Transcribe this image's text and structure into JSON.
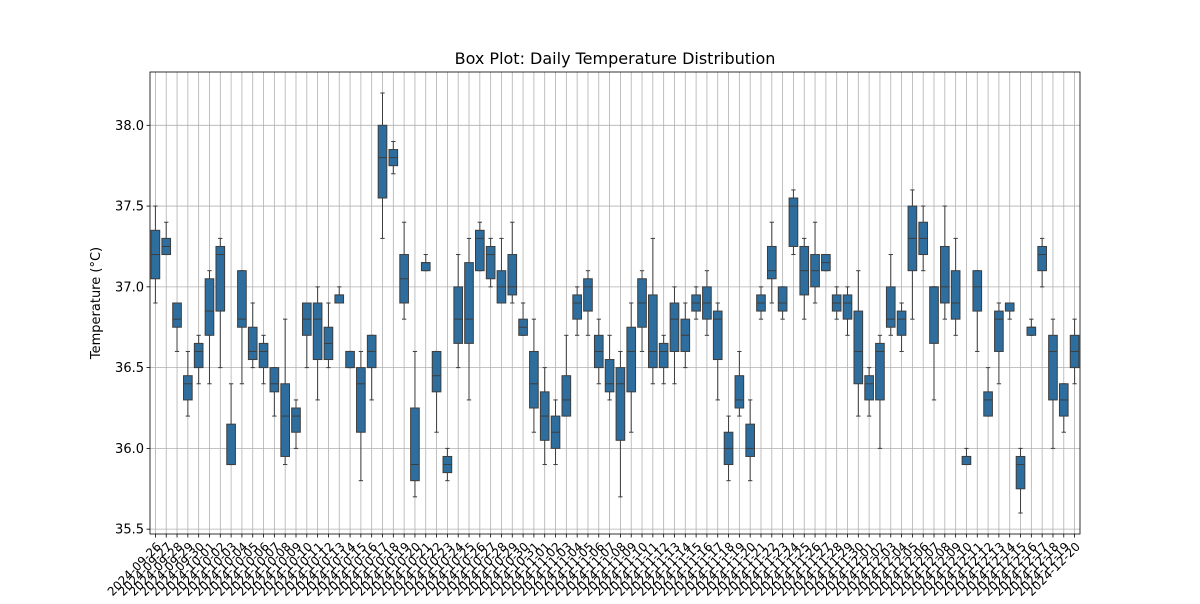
{
  "chart_data": {
    "type": "box",
    "title": "Box Plot: Daily Temperature Distribution",
    "xlabel": "",
    "ylabel": "Temperature (°C)",
    "ylim": [
      35.47,
      38.33
    ],
    "yticks": [
      35.5,
      36.0,
      36.5,
      37.0,
      37.5,
      38.0
    ],
    "ytick_labels": [
      "35.5",
      "36.0",
      "36.5",
      "37.0",
      "37.5",
      "38.0"
    ],
    "grid": true,
    "box_color": "#2e6e9e",
    "tick_label_rotation": 45,
    "categories": [
      "2024-09-26",
      "2024-09-27",
      "2024-09-28",
      "2024-09-29",
      "2024-09-30",
      "2024-10-01",
      "2024-10-02",
      "2024-10-03",
      "2024-10-04",
      "2024-10-05",
      "2024-10-06",
      "2024-10-07",
      "2024-10-08",
      "2024-10-09",
      "2024-10-10",
      "2024-10-11",
      "2024-10-12",
      "2024-10-13",
      "2024-10-14",
      "2024-10-15",
      "2024-10-16",
      "2024-10-17",
      "2024-10-18",
      "2024-10-19",
      "2024-10-20",
      "2024-10-21",
      "2024-10-22",
      "2024-10-23",
      "2024-10-24",
      "2024-10-25",
      "2024-10-26",
      "2024-10-27",
      "2024-10-28",
      "2024-10-29",
      "2024-10-30",
      "2024-10-31",
      "2024-11-01",
      "2024-11-02",
      "2024-11-03",
      "2024-11-04",
      "2024-11-05",
      "2024-11-06",
      "2024-11-07",
      "2024-11-08",
      "2024-11-09",
      "2024-11-10",
      "2024-11-11",
      "2024-11-12",
      "2024-11-13",
      "2024-11-14",
      "2024-11-15",
      "2024-11-16",
      "2024-11-17",
      "2024-11-18",
      "2024-11-19",
      "2024-11-20",
      "2024-11-21",
      "2024-11-22",
      "2024-11-23",
      "2024-11-24",
      "2024-11-25",
      "2024-11-26",
      "2024-11-27",
      "2024-11-28",
      "2024-11-29",
      "2024-11-30",
      "2024-12-01",
      "2024-12-02",
      "2024-12-03",
      "2024-12-04",
      "2024-12-05",
      "2024-12-06",
      "2024-12-07",
      "2024-12-08",
      "2024-12-09",
      "2024-12-10",
      "2024-12-11",
      "2024-12-12",
      "2024-12-13",
      "2024-12-14",
      "2024-12-15",
      "2024-12-16",
      "2024-12-17",
      "2024-12-18",
      "2024-12-19",
      "2024-12-20"
    ],
    "boxes": [
      {
        "whislo": 36.9,
        "q1": 37.05,
        "med": 37.2,
        "q3": 37.35,
        "whishi": 37.5
      },
      {
        "whislo": 37.2,
        "q1": 37.2,
        "med": 37.25,
        "q3": 37.3,
        "whishi": 37.4
      },
      {
        "whislo": 36.6,
        "q1": 36.75,
        "med": 36.8,
        "q3": 36.9,
        "whishi": 36.9
      },
      {
        "whislo": 36.2,
        "q1": 36.3,
        "med": 36.4,
        "q3": 36.45,
        "whishi": 36.6
      },
      {
        "whislo": 36.4,
        "q1": 36.5,
        "med": 36.6,
        "q3": 36.65,
        "whishi": 36.7
      },
      {
        "whislo": 36.4,
        "q1": 36.7,
        "med": 36.85,
        "q3": 37.05,
        "whishi": 37.1
      },
      {
        "whislo": 36.5,
        "q1": 36.85,
        "med": 37.2,
        "q3": 37.25,
        "whishi": 37.3
      },
      {
        "whislo": 35.9,
        "q1": 35.9,
        "med": 35.9,
        "q3": 36.15,
        "whishi": 36.4
      },
      {
        "whislo": 36.4,
        "q1": 36.75,
        "med": 36.8,
        "q3": 37.1,
        "whishi": 37.1
      },
      {
        "whislo": 36.5,
        "q1": 36.55,
        "med": 36.6,
        "q3": 36.75,
        "whishi": 36.9
      },
      {
        "whislo": 36.4,
        "q1": 36.5,
        "med": 36.6,
        "q3": 36.65,
        "whishi": 36.7
      },
      {
        "whislo": 36.2,
        "q1": 36.35,
        "med": 36.4,
        "q3": 36.5,
        "whishi": 36.5
      },
      {
        "whislo": 35.9,
        "q1": 35.95,
        "med": 36.2,
        "q3": 36.4,
        "whishi": 36.8
      },
      {
        "whislo": 36.0,
        "q1": 36.1,
        "med": 36.2,
        "q3": 36.25,
        "whishi": 36.3
      },
      {
        "whislo": 36.5,
        "q1": 36.7,
        "med": 36.8,
        "q3": 36.9,
        "whishi": 36.9
      },
      {
        "whislo": 36.3,
        "q1": 36.55,
        "med": 36.8,
        "q3": 36.9,
        "whishi": 37.0
      },
      {
        "whislo": 36.5,
        "q1": 36.55,
        "med": 36.65,
        "q3": 36.75,
        "whishi": 36.9
      },
      {
        "whislo": 36.9,
        "q1": 36.9,
        "med": 36.95,
        "q3": 36.95,
        "whishi": 37.0
      },
      {
        "whislo": 36.5,
        "q1": 36.5,
        "med": 36.6,
        "q3": 36.6,
        "whishi": 36.6
      },
      {
        "whislo": 35.8,
        "q1": 36.1,
        "med": 36.4,
        "q3": 36.5,
        "whishi": 36.6
      },
      {
        "whislo": 36.3,
        "q1": 36.5,
        "med": 36.6,
        "q3": 36.7,
        "whishi": 36.7
      },
      {
        "whislo": 37.3,
        "q1": 37.55,
        "med": 37.8,
        "q3": 38.0,
        "whishi": 38.2
      },
      {
        "whislo": 37.7,
        "q1": 37.75,
        "med": 37.8,
        "q3": 37.85,
        "whishi": 37.9
      },
      {
        "whislo": 36.8,
        "q1": 36.9,
        "med": 37.05,
        "q3": 37.2,
        "whishi": 37.4
      },
      {
        "whislo": 35.7,
        "q1": 35.8,
        "med": 35.9,
        "q3": 36.25,
        "whishi": 36.6
      },
      {
        "whislo": 37.1,
        "q1": 37.1,
        "med": 37.15,
        "q3": 37.15,
        "whishi": 37.2
      },
      {
        "whislo": 36.1,
        "q1": 36.35,
        "med": 36.45,
        "q3": 36.6,
        "whishi": 36.6
      },
      {
        "whislo": 35.8,
        "q1": 35.85,
        "med": 35.9,
        "q3": 35.95,
        "whishi": 36.0
      },
      {
        "whislo": 36.5,
        "q1": 36.65,
        "med": 36.8,
        "q3": 37.0,
        "whishi": 37.2
      },
      {
        "whislo": 36.3,
        "q1": 36.65,
        "med": 36.8,
        "q3": 37.15,
        "whishi": 37.3
      },
      {
        "whislo": 37.1,
        "q1": 37.1,
        "med": 37.3,
        "q3": 37.35,
        "whishi": 37.4
      },
      {
        "whislo": 37.0,
        "q1": 37.05,
        "med": 37.2,
        "q3": 37.25,
        "whishi": 37.3
      },
      {
        "whislo": 36.9,
        "q1": 36.9,
        "med": 37.0,
        "q3": 37.1,
        "whishi": 37.3
      },
      {
        "whislo": 36.9,
        "q1": 36.95,
        "med": 37.0,
        "q3": 37.2,
        "whishi": 37.4
      },
      {
        "whislo": 36.7,
        "q1": 36.7,
        "med": 36.75,
        "q3": 36.8,
        "whishi": 36.9
      },
      {
        "whislo": 36.1,
        "q1": 36.25,
        "med": 36.4,
        "q3": 36.6,
        "whishi": 36.8
      },
      {
        "whislo": 35.9,
        "q1": 36.05,
        "med": 36.2,
        "q3": 36.35,
        "whishi": 36.5
      },
      {
        "whislo": 35.9,
        "q1": 36.0,
        "med": 36.1,
        "q3": 36.2,
        "whishi": 36.3
      },
      {
        "whislo": 36.2,
        "q1": 36.2,
        "med": 36.3,
        "q3": 36.45,
        "whishi": 36.7
      },
      {
        "whislo": 36.7,
        "q1": 36.8,
        "med": 36.9,
        "q3": 36.95,
        "whishi": 37.0
      },
      {
        "whislo": 36.7,
        "q1": 36.85,
        "med": 37.0,
        "q3": 37.05,
        "whishi": 37.1
      },
      {
        "whislo": 36.4,
        "q1": 36.5,
        "med": 36.6,
        "q3": 36.7,
        "whishi": 36.8
      },
      {
        "whislo": 36.3,
        "q1": 36.35,
        "med": 36.4,
        "q3": 36.55,
        "whishi": 36.7
      },
      {
        "whislo": 35.7,
        "q1": 36.05,
        "med": 36.4,
        "q3": 36.5,
        "whishi": 36.6
      },
      {
        "whislo": 36.1,
        "q1": 36.35,
        "med": 36.6,
        "q3": 36.75,
        "whishi": 36.9
      },
      {
        "whislo": 36.6,
        "q1": 36.75,
        "med": 36.9,
        "q3": 37.05,
        "whishi": 37.1
      },
      {
        "whislo": 36.4,
        "q1": 36.5,
        "med": 36.6,
        "q3": 36.95,
        "whishi": 37.3
      },
      {
        "whislo": 36.4,
        "q1": 36.5,
        "med": 36.6,
        "q3": 36.65,
        "whishi": 36.7
      },
      {
        "whislo": 36.4,
        "q1": 36.6,
        "med": 36.8,
        "q3": 36.9,
        "whishi": 37.0
      },
      {
        "whislo": 36.5,
        "q1": 36.6,
        "med": 36.7,
        "q3": 36.8,
        "whishi": 36.9
      },
      {
        "whislo": 36.8,
        "q1": 36.85,
        "med": 36.9,
        "q3": 36.95,
        "whishi": 37.0
      },
      {
        "whislo": 36.7,
        "q1": 36.8,
        "med": 36.9,
        "q3": 37.0,
        "whishi": 37.1
      },
      {
        "whislo": 36.3,
        "q1": 36.55,
        "med": 36.8,
        "q3": 36.85,
        "whishi": 36.9
      },
      {
        "whislo": 35.8,
        "q1": 35.9,
        "med": 36.0,
        "q3": 36.1,
        "whishi": 36.2
      },
      {
        "whislo": 36.2,
        "q1": 36.25,
        "med": 36.3,
        "q3": 36.45,
        "whishi": 36.6
      },
      {
        "whislo": 35.8,
        "q1": 35.95,
        "med": 36.0,
        "q3": 36.15,
        "whishi": 36.3
      },
      {
        "whislo": 36.8,
        "q1": 36.85,
        "med": 36.9,
        "q3": 36.95,
        "whishi": 37.0
      },
      {
        "whislo": 36.9,
        "q1": 37.05,
        "med": 37.1,
        "q3": 37.25,
        "whishi": 37.4
      },
      {
        "whislo": 36.8,
        "q1": 36.85,
        "med": 36.9,
        "q3": 37.0,
        "whishi": 37.0
      },
      {
        "whislo": 37.2,
        "q1": 37.25,
        "med": 37.5,
        "q3": 37.55,
        "whishi": 37.6
      },
      {
        "whislo": 36.8,
        "q1": 36.95,
        "med": 37.1,
        "q3": 37.25,
        "whishi": 37.3
      },
      {
        "whislo": 36.9,
        "q1": 37.0,
        "med": 37.1,
        "q3": 37.2,
        "whishi": 37.4
      },
      {
        "whislo": 37.1,
        "q1": 37.1,
        "med": 37.15,
        "q3": 37.2,
        "whishi": 37.2
      },
      {
        "whislo": 36.8,
        "q1": 36.85,
        "med": 36.9,
        "q3": 36.95,
        "whishi": 37.0
      },
      {
        "whislo": 36.7,
        "q1": 36.8,
        "med": 36.9,
        "q3": 36.95,
        "whishi": 37.0
      },
      {
        "whislo": 36.2,
        "q1": 36.4,
        "med": 36.6,
        "q3": 36.85,
        "whishi": 37.1
      },
      {
        "whislo": 36.2,
        "q1": 36.3,
        "med": 36.4,
        "q3": 36.45,
        "whishi": 36.5
      },
      {
        "whislo": 36.0,
        "q1": 36.3,
        "med": 36.6,
        "q3": 36.65,
        "whishi": 36.7
      },
      {
        "whislo": 36.7,
        "q1": 36.75,
        "med": 36.8,
        "q3": 37.0,
        "whishi": 37.2
      },
      {
        "whislo": 36.6,
        "q1": 36.7,
        "med": 36.8,
        "q3": 36.85,
        "whishi": 36.9
      },
      {
        "whislo": 36.8,
        "q1": 37.1,
        "med": 37.3,
        "q3": 37.5,
        "whishi": 37.6
      },
      {
        "whislo": 37.1,
        "q1": 37.2,
        "med": 37.3,
        "q3": 37.4,
        "whishi": 37.5
      },
      {
        "whislo": 36.3,
        "q1": 36.65,
        "med": 37.0,
        "q3": 37.0,
        "whishi": 37.0
      },
      {
        "whislo": 36.8,
        "q1": 36.9,
        "med": 37.0,
        "q3": 37.25,
        "whishi": 37.5
      },
      {
        "whislo": 36.7,
        "q1": 36.8,
        "med": 36.9,
        "q3": 37.1,
        "whishi": 37.3
      },
      {
        "whislo": 35.9,
        "q1": 35.9,
        "med": 35.95,
        "q3": 35.95,
        "whishi": 36.0
      },
      {
        "whislo": 36.6,
        "q1": 36.85,
        "med": 37.0,
        "q3": 37.1,
        "whishi": 37.1
      },
      {
        "whislo": 36.2,
        "q1": 36.2,
        "med": 36.3,
        "q3": 36.35,
        "whishi": 36.5
      },
      {
        "whislo": 36.4,
        "q1": 36.6,
        "med": 36.8,
        "q3": 36.85,
        "whishi": 36.9
      },
      {
        "whislo": 36.8,
        "q1": 36.85,
        "med": 36.9,
        "q3": 36.9,
        "whishi": 36.9
      },
      {
        "whislo": 35.6,
        "q1": 35.75,
        "med": 35.9,
        "q3": 35.95,
        "whishi": 36.0
      },
      {
        "whislo": 36.7,
        "q1": 36.7,
        "med": 36.75,
        "q3": 36.75,
        "whishi": 36.8
      },
      {
        "whislo": 37.0,
        "q1": 37.1,
        "med": 37.2,
        "q3": 37.25,
        "whishi": 37.3
      },
      {
        "whislo": 36.0,
        "q1": 36.3,
        "med": 36.6,
        "q3": 36.7,
        "whishi": 36.8
      },
      {
        "whislo": 36.1,
        "q1": 36.2,
        "med": 36.3,
        "q3": 36.4,
        "whishi": 36.4
      },
      {
        "whislo": 36.4,
        "q1": 36.5,
        "med": 36.6,
        "q3": 36.7,
        "whishi": 36.8
      }
    ]
  }
}
